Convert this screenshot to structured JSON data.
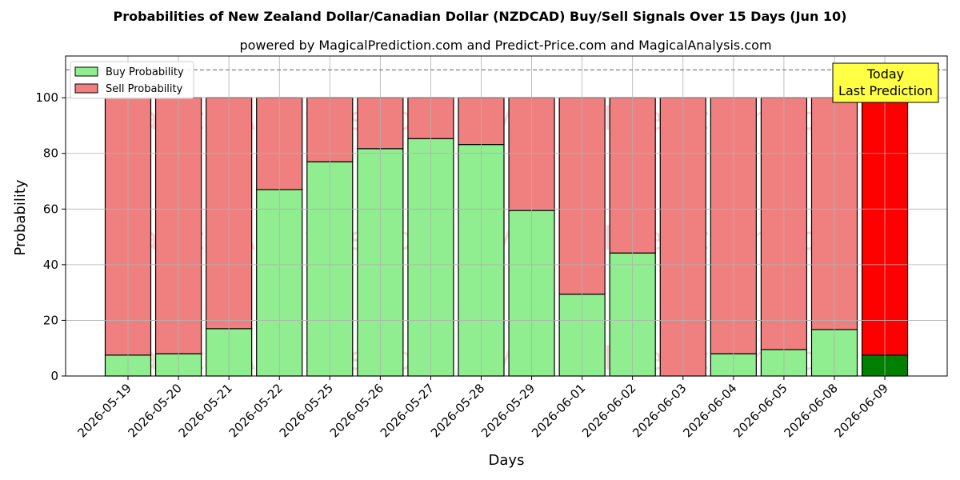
{
  "chart_data": {
    "type": "bar",
    "stacked": true,
    "title": "Probabilities of New Zealand Dollar/Canadian Dollar (NZDCAD) Buy/Sell Signals Over 15 Days (Jun 10)",
    "subtitle": "powered by MagicalPrediction.com and Predict-Price.com and MagicalAnalysis.com",
    "xlabel": "Days",
    "ylabel": "Probability",
    "ylim": [
      0,
      115
    ],
    "yticks": [
      0,
      20,
      40,
      60,
      80,
      100
    ],
    "grid": true,
    "legend_position": "top-left",
    "reference_line": 110,
    "categories": [
      "2026-05-19",
      "2026-05-20",
      "2026-05-21",
      "2026-05-22",
      "2026-05-25",
      "2026-05-26",
      "2026-05-27",
      "2026-05-28",
      "2026-05-29",
      "2026-06-01",
      "2026-06-02",
      "2026-06-03",
      "2026-06-04",
      "2026-06-05",
      "2026-06-08",
      "2026-06-09"
    ],
    "series": [
      {
        "name": "Buy Probability",
        "color": "#90ee90",
        "values": [
          7.5,
          8,
          17,
          67,
          77,
          81.7,
          85.3,
          83.2,
          59.5,
          29.4,
          44.2,
          0,
          8,
          9.5,
          16.7,
          7.5
        ]
      },
      {
        "name": "Sell Probability",
        "color": "#f08080",
        "values": [
          92.5,
          92,
          83,
          33,
          23,
          18.3,
          14.7,
          16.8,
          40.5,
          70.6,
          55.8,
          100,
          92,
          90.5,
          83.3,
          92.5
        ]
      }
    ],
    "highlight": {
      "index": 15,
      "buy_color": "#008000",
      "sell_color": "#ff0000",
      "label_lines": [
        "Today",
        "Last Prediction"
      ],
      "label_bg": "#ffff44"
    },
    "watermarks": [
      "MagicalAnalysis.com",
      "MagicalPrediction.com"
    ]
  }
}
